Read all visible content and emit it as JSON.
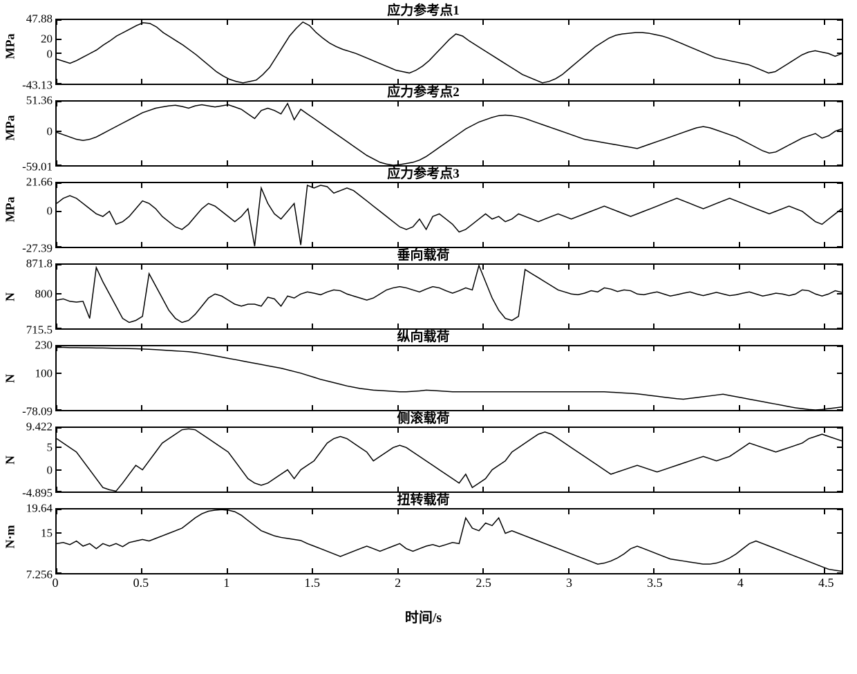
{
  "xaxis": {
    "label": "时间/s",
    "min": 0,
    "max": 4.6,
    "ticks": [
      0,
      0.5,
      1,
      1.5,
      2,
      2.5,
      3,
      3.5,
      4,
      4.5
    ]
  },
  "line_color": "#000000",
  "line_width": 1.5,
  "border_color": "#000000",
  "background_color": "#ffffff",
  "font_family": "Times New Roman, SimSun, serif",
  "title_fontsize": 19,
  "tick_fontsize": 17,
  "panels": [
    {
      "title": "应力参考点1",
      "ylabel": "MPa",
      "ymin": -43.13,
      "ymax": 47.88,
      "yticks": [
        {
          "v": 47.88,
          "l": "47.88"
        },
        {
          "v": 20,
          "l": "20"
        },
        {
          "v": 0,
          "l": "0"
        },
        {
          "v": -43.13,
          "l": "-43.13"
        }
      ],
      "data": [
        -8,
        -11,
        -14,
        -10,
        -5,
        0,
        5,
        12,
        18,
        25,
        30,
        35,
        40,
        44,
        43,
        38,
        30,
        24,
        18,
        12,
        5,
        -2,
        -10,
        -18,
        -26,
        -32,
        -37,
        -40,
        -42,
        -40,
        -38,
        -30,
        -20,
        -5,
        10,
        25,
        36,
        45,
        40,
        30,
        22,
        15,
        10,
        6,
        3,
        0,
        -4,
        -8,
        -12,
        -16,
        -20,
        -24,
        -26,
        -28,
        -24,
        -18,
        -10,
        0,
        10,
        20,
        28,
        25,
        18,
        12,
        6,
        0,
        -6,
        -12,
        -18,
        -24,
        -30,
        -34,
        -38,
        -42,
        -40,
        -36,
        -30,
        -22,
        -14,
        -6,
        2,
        10,
        16,
        22,
        26,
        28,
        29,
        30,
        30,
        29,
        27,
        25,
        22,
        18,
        14,
        10,
        6,
        2,
        -2,
        -6,
        -8,
        -10,
        -12,
        -14,
        -16,
        -20,
        -24,
        -28,
        -26,
        -20,
        -14,
        -8,
        -2,
        2,
        4,
        2,
        0,
        -4,
        0
      ]
    },
    {
      "title": "应力参考点2",
      "ylabel": "MPa",
      "ymin": -59.01,
      "ymax": 51.36,
      "yticks": [
        {
          "v": 51.36,
          "l": "51.36"
        },
        {
          "v": 0,
          "l": "0"
        },
        {
          "v": -59.01,
          "l": "-59.01"
        }
      ],
      "data": [
        -2,
        -6,
        -10,
        -14,
        -16,
        -14,
        -10,
        -4,
        2,
        8,
        14,
        20,
        26,
        32,
        36,
        40,
        42,
        44,
        45,
        43,
        40,
        44,
        46,
        44,
        42,
        44,
        46,
        42,
        38,
        30,
        22,
        36,
        40,
        36,
        30,
        48,
        20,
        38,
        30,
        22,
        14,
        6,
        -2,
        -10,
        -18,
        -26,
        -34,
        -42,
        -48,
        -54,
        -57,
        -59,
        -58,
        -56,
        -54,
        -50,
        -44,
        -36,
        -28,
        -20,
        -12,
        -4,
        4,
        10,
        16,
        20,
        24,
        27,
        28,
        27,
        25,
        22,
        18,
        14,
        10,
        6,
        2,
        -2,
        -6,
        -10,
        -14,
        -16,
        -18,
        -20,
        -22,
        -24,
        -26,
        -28,
        -30,
        -26,
        -22,
        -18,
        -14,
        -10,
        -6,
        -2,
        2,
        6,
        8,
        6,
        2,
        -2,
        -6,
        -10,
        -16,
        -22,
        -28,
        -34,
        -38,
        -36,
        -30,
        -24,
        -18,
        -12,
        -8,
        -4,
        -12,
        -8,
        0,
        4
      ]
    },
    {
      "title": "应力参考点3",
      "ylabel": "MPa",
      "ymin": -27.39,
      "ymax": 21.66,
      "yticks": [
        {
          "v": 21.66,
          "l": "21.66"
        },
        {
          "v": 0,
          "l": "0"
        },
        {
          "v": -27.39,
          "l": "-27.39"
        }
      ],
      "data": [
        6,
        10,
        12,
        10,
        6,
        2,
        -2,
        -4,
        0,
        -10,
        -8,
        -4,
        2,
        8,
        6,
        2,
        -4,
        -8,
        -12,
        -14,
        -10,
        -4,
        2,
        6,
        4,
        0,
        -4,
        -8,
        -4,
        2,
        -27,
        18,
        6,
        -2,
        -6,
        0,
        6,
        -26,
        20,
        18,
        20,
        19,
        14,
        16,
        18,
        16,
        12,
        8,
        4,
        0,
        -4,
        -8,
        -12,
        -14,
        -12,
        -6,
        -14,
        -4,
        -2,
        -6,
        -10,
        -16,
        -14,
        -10,
        -6,
        -2,
        -6,
        -4,
        -8,
        -6,
        -2,
        -4,
        -6,
        -8,
        -6,
        -4,
        -2,
        -4,
        -6,
        -4,
        -2,
        0,
        2,
        4,
        2,
        0,
        -2,
        -4,
        -2,
        0,
        2,
        4,
        6,
        8,
        10,
        8,
        6,
        4,
        2,
        4,
        6,
        8,
        10,
        8,
        6,
        4,
        2,
        0,
        -2,
        0,
        2,
        4,
        2,
        0,
        -4,
        -8,
        -10,
        -6,
        -2,
        2
      ]
    },
    {
      "title": "垂向载荷",
      "ylabel": "N",
      "ymin": 715.5,
      "ymax": 871.8,
      "yticks": [
        {
          "v": 871.8,
          "l": "871.8"
        },
        {
          "v": 800,
          "l": "800"
        },
        {
          "v": 715.5,
          "l": "715.5"
        }
      ],
      "data": [
        785,
        788,
        782,
        780,
        782,
        740,
        865,
        830,
        800,
        770,
        740,
        730,
        735,
        745,
        850,
        820,
        790,
        760,
        740,
        730,
        735,
        750,
        770,
        790,
        800,
        795,
        785,
        775,
        770,
        775,
        775,
        770,
        792,
        788,
        770,
        795,
        790,
        800,
        805,
        802,
        798,
        805,
        810,
        808,
        800,
        795,
        790,
        785,
        790,
        800,
        810,
        815,
        818,
        815,
        810,
        805,
        812,
        818,
        815,
        808,
        802,
        808,
        815,
        810,
        870,
        830,
        790,
        760,
        740,
        735,
        745,
        860,
        850,
        840,
        830,
        820,
        810,
        805,
        800,
        798,
        802,
        808,
        805,
        815,
        812,
        806,
        810,
        808,
        800,
        798,
        802,
        805,
        800,
        795,
        798,
        802,
        805,
        800,
        796,
        800,
        804,
        800,
        796,
        798,
        802,
        805,
        800,
        795,
        798,
        802,
        800,
        796,
        800,
        810,
        808,
        800,
        795,
        800,
        808,
        804
      ]
    },
    {
      "title": "纵向载荷",
      "ylabel": "N",
      "ymin": -78.09,
      "ymax": 230,
      "yticks": [
        {
          "v": 230,
          "l": "230"
        },
        {
          "v": 100,
          "l": "100"
        },
        {
          "v": -78.09,
          "l": "-78.09"
        }
      ],
      "data": [
        225,
        225,
        224,
        224,
        223,
        223,
        222,
        222,
        221,
        220,
        220,
        219,
        218,
        217,
        216,
        214,
        212,
        210,
        208,
        206,
        204,
        200,
        195,
        190,
        184,
        178,
        172,
        166,
        160,
        154,
        148,
        142,
        136,
        130,
        124,
        116,
        108,
        100,
        90,
        80,
        70,
        62,
        54,
        46,
        38,
        32,
        26,
        22,
        18,
        16,
        14,
        12,
        10,
        10,
        12,
        14,
        18,
        16,
        14,
        12,
        10,
        10,
        10,
        10,
        10,
        10,
        10,
        10,
        10,
        10,
        10,
        10,
        10,
        10,
        10,
        10,
        10,
        10,
        10,
        10,
        10,
        10,
        10,
        10,
        8,
        6,
        4,
        2,
        0,
        -4,
        -8,
        -12,
        -16,
        -20,
        -24,
        -26,
        -22,
        -18,
        -14,
        -10,
        -6,
        -2,
        -8,
        -14,
        -20,
        -26,
        -32,
        -38,
        -44,
        -50,
        -56,
        -62,
        -68,
        -72,
        -76,
        -78,
        -76,
        -72,
        -68,
        -64
      ]
    },
    {
      "title": "侧滚载荷",
      "ylabel": "N",
      "ymin": -4.895,
      "ymax": 9.422,
      "yticks": [
        {
          "v": 9.422,
          "l": "9.422"
        },
        {
          "v": 5,
          "l": "5"
        },
        {
          "v": 0,
          "l": "0"
        },
        {
          "v": -4.895,
          "l": "-4.895"
        }
      ],
      "data": [
        7,
        6,
        5,
        4,
        2,
        0,
        -2,
        -4,
        -4.5,
        -4.8,
        -3,
        -1,
        1,
        0,
        2,
        4,
        6,
        7,
        8,
        9,
        9.2,
        9,
        8,
        7,
        6,
        5,
        4,
        2,
        0,
        -2,
        -3,
        -3.5,
        -3,
        -2,
        -1,
        0,
        -2,
        0,
        1,
        2,
        4,
        6,
        7,
        7.5,
        7,
        6,
        5,
        4,
        2,
        3,
        4,
        5,
        5.5,
        5,
        4,
        3,
        2,
        1,
        0,
        -1,
        -2,
        -3,
        -1,
        -4,
        -3,
        -2,
        0,
        1,
        2,
        4,
        5,
        6,
        7,
        8,
        8.5,
        8,
        7,
        6,
        5,
        4,
        3,
        2,
        1,
        0,
        -1,
        -0.5,
        0,
        0.5,
        1,
        0.5,
        0,
        -0.5,
        0,
        0.5,
        1,
        1.5,
        2,
        2.5,
        3,
        2.5,
        2,
        2.5,
        3,
        4,
        5,
        6,
        5.5,
        5,
        4.5,
        4,
        4.5,
        5,
        5.5,
        6,
        7,
        7.5,
        8,
        7.5,
        7,
        6.5
      ]
    },
    {
      "title": "扭转载荷",
      "ylabel": "N·m",
      "ymin": 7.256,
      "ymax": 19.64,
      "yticks": [
        {
          "v": 19.64,
          "l": "19.64"
        },
        {
          "v": 15,
          "l": "15"
        },
        {
          "v": 7.256,
          "l": "7.256"
        }
      ],
      "data": [
        13,
        13.2,
        12.8,
        13.5,
        12.5,
        13,
        12,
        13,
        12.5,
        13,
        12.4,
        13.2,
        13.5,
        13.8,
        13.5,
        14,
        14.5,
        15,
        15.5,
        16,
        17,
        18,
        18.8,
        19.3,
        19.5,
        19.6,
        19.5,
        19.2,
        18.5,
        17.5,
        16.5,
        15.5,
        15,
        14.5,
        14.2,
        14,
        13.8,
        13.6,
        13,
        12.5,
        12,
        11.5,
        11,
        10.5,
        11,
        11.5,
        12,
        12.5,
        12,
        11.5,
        12,
        12.5,
        13,
        12,
        11.5,
        12,
        12.5,
        12.8,
        12.4,
        12.8,
        13.2,
        13,
        18,
        16,
        15.5,
        17,
        16.5,
        18,
        15,
        15.5,
        15,
        14.5,
        14,
        13.5,
        13,
        12.5,
        12,
        11.5,
        11,
        10.5,
        10,
        9.5,
        9,
        9.2,
        9.6,
        10.2,
        11,
        12,
        12.5,
        12,
        11.5,
        11,
        10.5,
        10,
        9.8,
        9.6,
        9.4,
        9.2,
        9,
        9,
        9.2,
        9.6,
        10.2,
        11,
        12,
        13,
        13.5,
        13,
        12.5,
        12,
        11.5,
        11,
        10.5,
        10,
        9.5,
        9,
        8.5,
        8,
        7.8,
        7.6
      ]
    }
  ]
}
